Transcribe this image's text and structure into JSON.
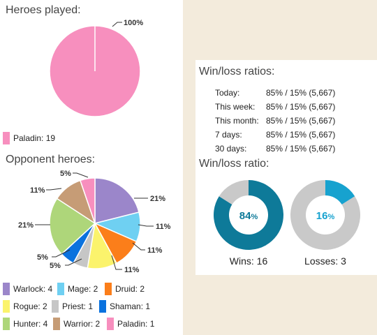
{
  "heroes_played": {
    "title": "Heroes played:",
    "legend": [
      {
        "label": "Paladin: 19",
        "color": "#f78fbe"
      }
    ]
  },
  "opponent_heroes": {
    "title": "Opponent heroes:",
    "legend": [
      {
        "label": "Warlock: 4",
        "color": "#9b86ca"
      },
      {
        "label": "Mage: 2",
        "color": "#6fd0f2"
      },
      {
        "label": "Druid: 2",
        "color": "#fb7e1a"
      },
      {
        "label": "Rogue: 2",
        "color": "#fbf36c"
      },
      {
        "label": "Priest: 1",
        "color": "#c6c6c6"
      },
      {
        "label": "Shaman: 1",
        "color": "#0a72de"
      },
      {
        "label": "Hunter: 4",
        "color": "#aed67a"
      },
      {
        "label": "Warrior: 2",
        "color": "#c69c76"
      },
      {
        "label": "Paladin: 1",
        "color": "#f78fbe"
      }
    ]
  },
  "win_loss_ratios": {
    "title": "Win/loss ratios:",
    "rows": [
      {
        "label": "Today:",
        "value": "85% / 15% (5,667)"
      },
      {
        "label": "This week:",
        "value": "85% / 15% (5,667)"
      },
      {
        "label": "This month:",
        "value": "85% / 15% (5,667)"
      },
      {
        "label": "7 days:",
        "value": "85% / 15% (5,667)"
      },
      {
        "label": "30 days:",
        "value": "85% / 15% (5,667)"
      }
    ]
  },
  "win_loss_ratio": {
    "title": "Win/loss ratio:",
    "wins": {
      "caption": "Wins: 16",
      "value": "84",
      "unit": "%",
      "color": "#0e7a99",
      "track": "#c9c9c9"
    },
    "losses": {
      "caption": "Losses: 3",
      "value": "16",
      "unit": "%",
      "color": "#17a2cf",
      "track": "#c9c9c9"
    }
  },
  "chart_data": [
    {
      "type": "pie",
      "categories": [
        "Paladin"
      ],
      "values": [
        19
      ],
      "data_labels": [
        "100%"
      ],
      "colors": [
        "#f78fbe"
      ]
    },
    {
      "type": "pie",
      "categories": [
        "Warlock",
        "Mage",
        "Druid",
        "Rogue",
        "Priest",
        "Shaman",
        "Hunter",
        "Warrior",
        "Paladin"
      ],
      "values": [
        4,
        2,
        2,
        2,
        1,
        1,
        4,
        2,
        1
      ],
      "data_labels": [
        "21%",
        "11%",
        "11%",
        "11%",
        "",
        "5%",
        "21%",
        "11%",
        "5%"
      ],
      "extra_label": "5%",
      "colors": [
        "#9b86ca",
        "#6fd0f2",
        "#fb7e1a",
        "#fbf36c",
        "#c6c6c6",
        "#0a72de",
        "#aed67a",
        "#c69c76",
        "#f78fbe"
      ]
    },
    {
      "type": "pie",
      "categories": [
        "Wins",
        "Losses"
      ],
      "values": [
        84,
        16
      ]
    },
    {
      "type": "pie",
      "categories": [
        "Losses",
        "Wins"
      ],
      "values": [
        16,
        84
      ]
    }
  ]
}
